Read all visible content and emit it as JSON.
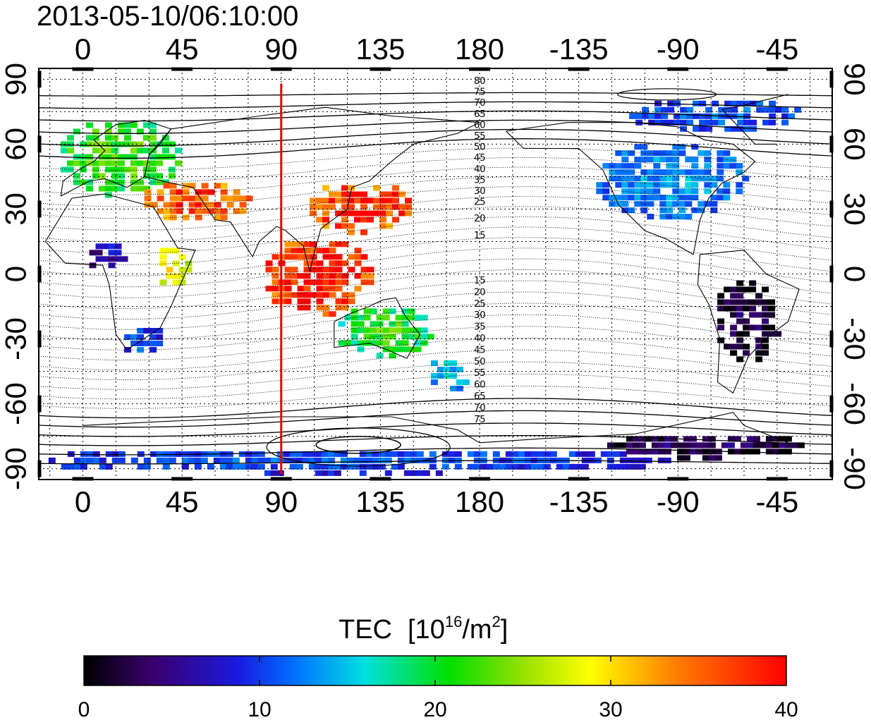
{
  "title": "2013-05-10/06:10:00",
  "map": {
    "lon_ticks_top": [
      "0",
      "45",
      "90",
      "135",
      "180",
      "-135",
      "-90",
      "-45"
    ],
    "lon_ticks_bottom": [
      "0",
      "45",
      "90",
      "135",
      "180",
      "-135",
      "-90",
      "-45"
    ],
    "lat_ticks_left": [
      "90",
      "60",
      "30",
      "0",
      "-30",
      "-60",
      "-90"
    ],
    "lat_ticks_right": [
      "90",
      "60",
      "30",
      "0",
      "-30",
      "-60",
      "-90"
    ],
    "lon_range": [
      -20,
      340
    ],
    "lat_range": [
      -95,
      95
    ],
    "meridian_line_lon": 90,
    "meridian_line_color": "#e00000",
    "contour_labels_north": [
      "80",
      "75",
      "70",
      "65",
      "60",
      "55",
      "50",
      "45",
      "40",
      "35",
      "30",
      "25",
      "20",
      "15"
    ],
    "contour_labels_south": [
      "15",
      "20",
      "25",
      "30",
      "35",
      "40",
      "45",
      "50",
      "55",
      "60",
      "65",
      "70",
      "75"
    ]
  },
  "colorbar": {
    "title_prefix": "TEC",
    "title_unit_open": "[10",
    "title_unit_exp": "16",
    "title_unit_mid": "/m",
    "title_unit_exp2": "2",
    "title_unit_close": "]",
    "ticks": [
      "0",
      "10",
      "20",
      "30",
      "40"
    ],
    "min": 0,
    "max": 40,
    "colors": [
      "#000000",
      "#3a0070",
      "#1a1ae0",
      "#0070ff",
      "#00e0e0",
      "#00e000",
      "#b0e000",
      "#ffff00",
      "#ff8000",
      "#ff0000"
    ]
  },
  "tec_regions": [
    {
      "name": "europe",
      "lon": 15,
      "lat": 55,
      "rx": 28,
      "ry": 18,
      "tec": 24
    },
    {
      "name": "middle-east",
      "lon": 50,
      "lat": 35,
      "rx": 25,
      "ry": 10,
      "tec": 38
    },
    {
      "name": "east-asia",
      "lon": 125,
      "lat": 32,
      "rx": 25,
      "ry": 12,
      "tec": 39
    },
    {
      "name": "south-asia",
      "lon": 105,
      "lat": 0,
      "rx": 25,
      "ry": 18,
      "tec": 40
    },
    {
      "name": "australia",
      "lon": 135,
      "lat": -25,
      "rx": 22,
      "ry": 12,
      "tec": 23
    },
    {
      "name": "africa-south",
      "lon": 25,
      "lat": -30,
      "rx": 12,
      "ry": 8,
      "tec": 12
    },
    {
      "name": "east-africa",
      "lon": 40,
      "lat": 5,
      "rx": 8,
      "ry": 10,
      "tec": 31
    },
    {
      "name": "west-africa",
      "lon": 10,
      "lat": 10,
      "rx": 10,
      "ry": 7,
      "tec": 8
    },
    {
      "name": "north-america",
      "lon": -95,
      "lat": 45,
      "rx": 35,
      "ry": 18,
      "tec": 15
    },
    {
      "name": "arctic-canada",
      "lon": -75,
      "lat": 75,
      "rx": 40,
      "ry": 8,
      "tec": 13
    },
    {
      "name": "south-america",
      "lon": -60,
      "lat": -20,
      "rx": 15,
      "ry": 20,
      "tec": 3
    },
    {
      "name": "antarctica",
      "lon": 120,
      "lat": -85,
      "rx": 150,
      "ry": 6,
      "tec": 12
    },
    {
      "name": "southern-ocean-east",
      "lon": -80,
      "lat": -78,
      "rx": 45,
      "ry": 6,
      "tec": 4
    },
    {
      "name": "new-zealand",
      "lon": 165,
      "lat": -45,
      "rx": 10,
      "ry": 8,
      "tec": 17
    }
  ]
}
